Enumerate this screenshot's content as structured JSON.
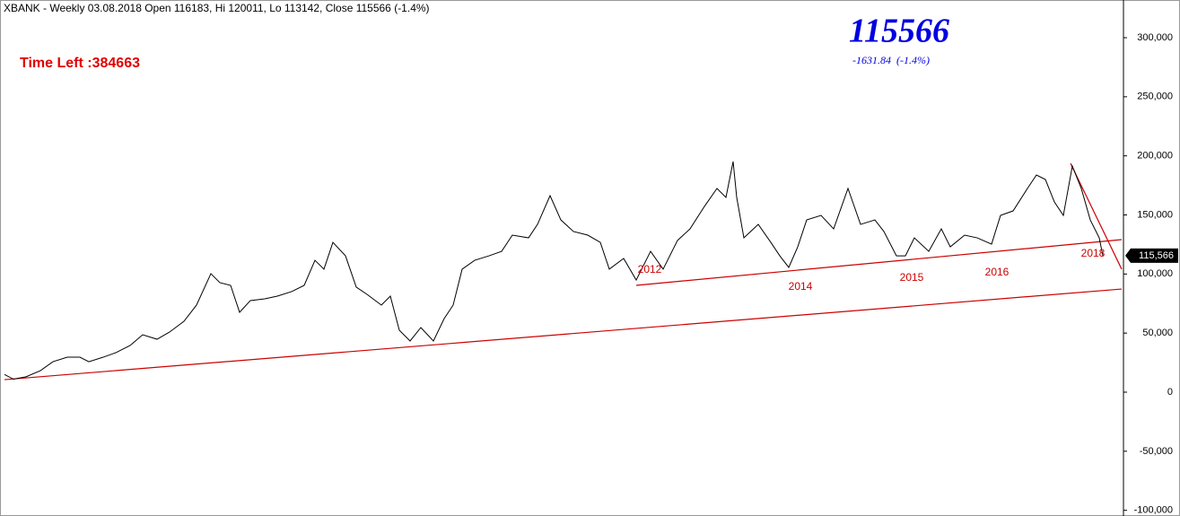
{
  "chart_data": {
    "type": "line",
    "title": "XBANK - Weekly 03.08.2018 Open 116183, Hi 120011, Lo 113142, Close 115566 (-1.4%)",
    "timer": "Time Left :384663",
    "quote": {
      "price": "115566",
      "change": "-1631.84  (-1.4%)"
    },
    "last_label": "115,566",
    "color": "#000000",
    "x": [
      0,
      5,
      12,
      20,
      27,
      35,
      42,
      47,
      55,
      62,
      70,
      77,
      85,
      92,
      100,
      107,
      115,
      120,
      126,
      131,
      137,
      145,
      152,
      160,
      167,
      173,
      178,
      183,
      190,
      196,
      202,
      210,
      215,
      220,
      226,
      232,
      239,
      245,
      250,
      255,
      262,
      270,
      277,
      283,
      292,
      297,
      304,
      310,
      317,
      325,
      332,
      337,
      345,
      352,
      360,
      367,
      375,
      382,
      390,
      397,
      402,
      406,
      408,
      412,
      420,
      427,
      432,
      437,
      442,
      447,
      455,
      462,
      470,
      477,
      485,
      490,
      497,
      502,
      507,
      515,
      522,
      527,
      535,
      542,
      550,
      555,
      562,
      570,
      575,
      580,
      585,
      590,
      595,
      600,
      605,
      610,
      612
    ],
    "values": [
      15000,
      11000,
      13000,
      18200,
      25800,
      29600,
      29600,
      25800,
      29600,
      33400,
      39500,
      48600,
      44800,
      50900,
      60000,
      73700,
      100300,
      92700,
      90400,
      67600,
      77500,
      79000,
      81300,
      85100,
      90400,
      111600,
      104100,
      126800,
      115400,
      88900,
      82800,
      73700,
      81300,
      52400,
      43300,
      54700,
      43300,
      62300,
      73700,
      104100,
      111600,
      115400,
      119200,
      132900,
      130600,
      142000,
      166300,
      145800,
      136000,
      132900,
      126800,
      104100,
      113200,
      94900,
      119200,
      104100,
      128400,
      138200,
      157200,
      172400,
      164800,
      195200,
      164800,
      130600,
      142000,
      126800,
      115400,
      105600,
      123000,
      145800,
      149600,
      138200,
      172400,
      142000,
      145800,
      136000,
      115400,
      115400,
      130600,
      119200,
      138200,
      123000,
      132900,
      130600,
      125300,
      149600,
      153400,
      172400,
      183800,
      180000,
      161000,
      149600,
      191400,
      172400,
      145800,
      130600,
      115566
    ],
    "trendlines": [
      {
        "color": "#cc0000",
        "x": [
          0,
          622.5
        ],
        "values": [
          10600,
          87300
        ]
      },
      {
        "color": "#cc0000",
        "x": [
          352,
          622.5
        ],
        "values": [
          90400,
          129100
        ]
      },
      {
        "color": "#cc0000",
        "x": [
          594,
          622.5
        ],
        "values": [
          193700,
          104100
        ]
      }
    ],
    "annotations": [
      {
        "text": "2012",
        "x": 359.5,
        "y": 103300
      },
      {
        "text": "2014",
        "x": 443.5,
        "y": 88900
      },
      {
        "text": "2015",
        "x": 505.5,
        "y": 96500
      },
      {
        "text": "2016",
        "x": 553,
        "y": 101000
      },
      {
        "text": "2018",
        "x": 606.5,
        "y": 117000
      }
    ],
    "annotation_color": "#cc0000",
    "xlim": [
      -2.5,
      622.5
    ],
    "ylim": [
      -104800,
      331900
    ],
    "yticks": [
      {
        "value": 300000,
        "label": "300,000"
      },
      {
        "value": 250000,
        "label": "250,000"
      },
      {
        "value": 200000,
        "label": "200,000"
      },
      {
        "value": 150000,
        "label": "150,000"
      },
      {
        "value": 100000,
        "label": "100,000"
      },
      {
        "value": 50000,
        "label": "50,000"
      },
      0,
      {
        "value": -50000,
        "label": "-50,000"
      },
      {
        "value": -100000,
        "label": "-100,000"
      }
    ]
  }
}
